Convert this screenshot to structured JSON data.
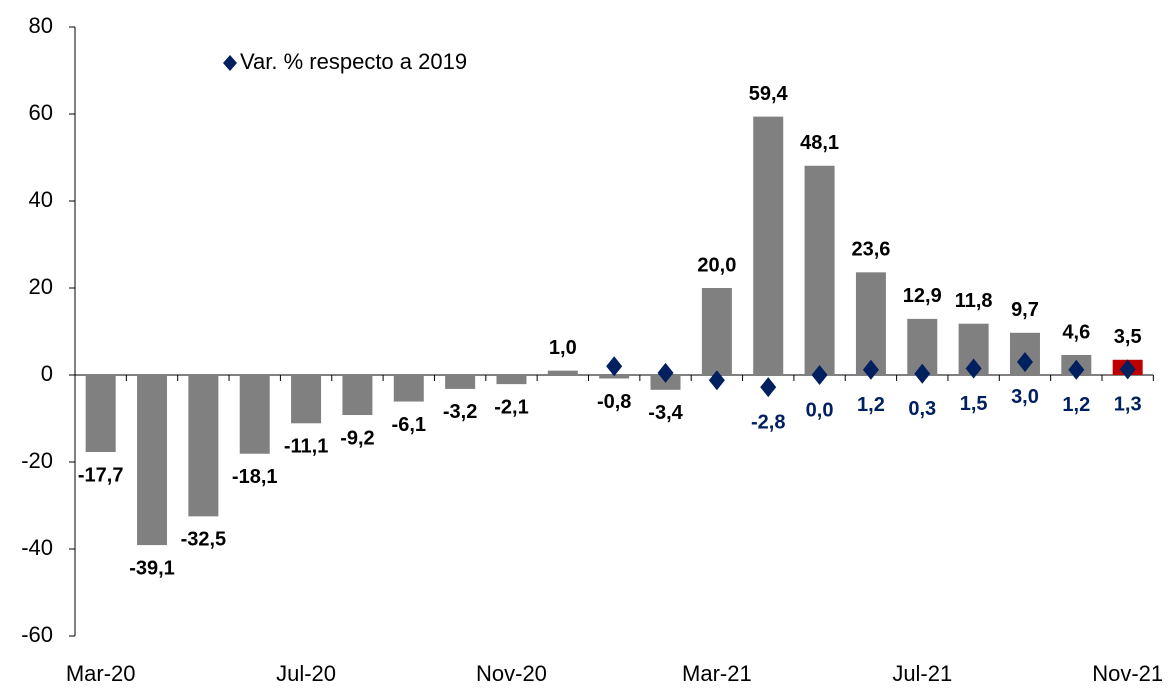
{
  "chart_data": {
    "type": "bar",
    "categories": [
      "Mar-20",
      null,
      null,
      null,
      "Jul-20",
      null,
      null,
      null,
      "Nov-20",
      null,
      null,
      null,
      "Mar-21",
      null,
      null,
      null,
      "Jul-21",
      null,
      null,
      null,
      "Nov-21"
    ],
    "series": [
      {
        "type": "bar",
        "values": [
          -17.7,
          -39.1,
          -32.5,
          -18.1,
          -11.1,
          -9.2,
          -6.1,
          -3.2,
          -2.1,
          1.0,
          -0.8,
          -3.4,
          20.0,
          59.4,
          48.1,
          23.6,
          12.9,
          11.8,
          9.7,
          4.6,
          3.5
        ],
        "value_labels": [
          "-17,7",
          "-39,1",
          "-32,5",
          "-18,1",
          "-11,1",
          "-9,2",
          "-6,1",
          "-3,2",
          "-2,1",
          "1,0",
          "-0,8",
          "-3,4",
          "20,0",
          "59,4",
          "48,1",
          "23,6",
          "12,9",
          "11,8",
          "9,7",
          "4,6",
          "3,5"
        ],
        "colors": [
          "#808080",
          "#808080",
          "#808080",
          "#808080",
          "#808080",
          "#808080",
          "#808080",
          "#808080",
          "#808080",
          "#808080",
          "#808080",
          "#808080",
          "#808080",
          "#808080",
          "#808080",
          "#808080",
          "#808080",
          "#808080",
          "#808080",
          "#808080",
          "#c00000"
        ]
      },
      {
        "type": "scatter",
        "name": "Var. % respecto a 2019",
        "color": "#002060",
        "marker": "diamond",
        "values": [
          null,
          null,
          null,
          null,
          null,
          null,
          null,
          null,
          null,
          null,
          2.0,
          0.5,
          -1.2,
          -2.8,
          0.0,
          1.2,
          0.3,
          1.5,
          3.0,
          1.2,
          1.3
        ],
        "value_labels": [
          null,
          null,
          null,
          null,
          null,
          null,
          null,
          null,
          null,
          null,
          null,
          null,
          null,
          "-2,8",
          "0,0",
          "1,2",
          "0,3",
          "1,5",
          "3,0",
          "1,2",
          "1,3"
        ]
      }
    ],
    "ylim": [
      -60,
      80
    ],
    "yticks": [
      -60,
      -40,
      -20,
      0,
      20,
      40,
      60,
      80
    ],
    "grid": false,
    "legend": "upper left"
  }
}
